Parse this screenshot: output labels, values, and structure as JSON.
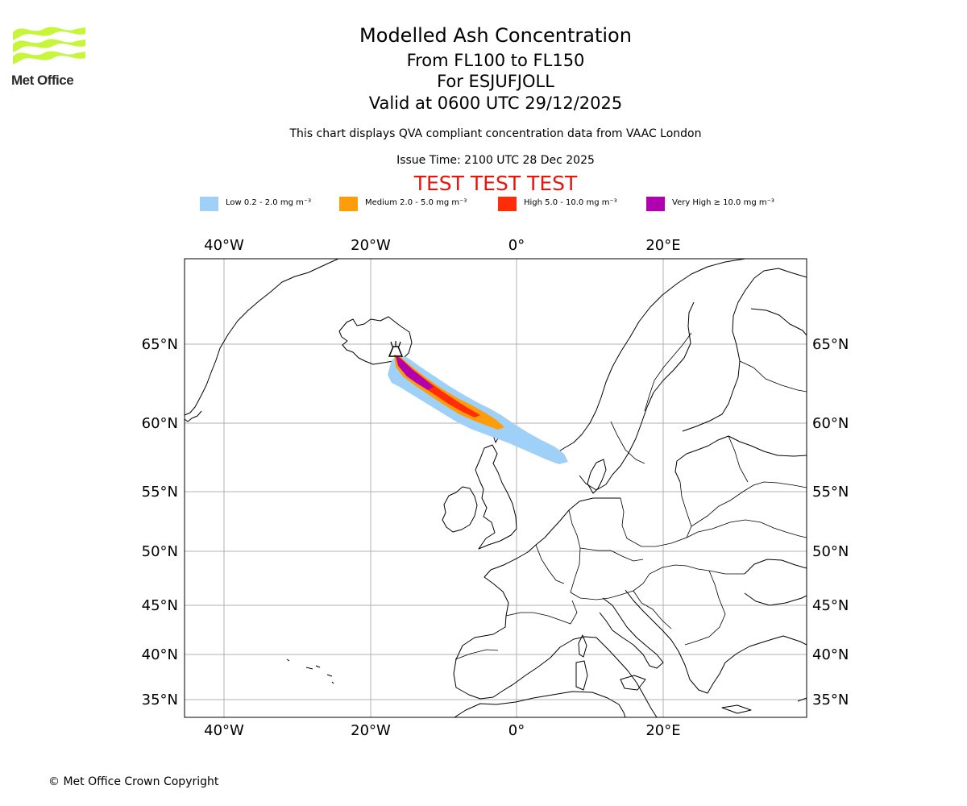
{
  "header": {
    "logo_text": "Met Office",
    "title_line1": "Modelled Ash Concentration",
    "title_line2": "From FL100 to FL150",
    "title_line3": "For ESJUFJOLL",
    "title_line4": "Valid at 0600 UTC 29/12/2025",
    "subtitle": "This chart displays QVA compliant concentration data from VAAC London",
    "issue_time": "Issue Time: 2100 UTC 28 Dec 2025",
    "test_banner": "TEST TEST TEST"
  },
  "legend": [
    {
      "label": "Low 0.2 - 2.0 mg m⁻³",
      "color": "#9fd0f7"
    },
    {
      "label": "Medium 2.0 - 5.0 mg m⁻³",
      "color": "#ff9c0a"
    },
    {
      "label": "High 5.0 - 10.0 mg m⁻³",
      "color": "#ff2d0a"
    },
    {
      "label": "Very High ≥ 10.0 mg m⁻³",
      "color": "#b000b0"
    }
  ],
  "map": {
    "longitude_labels": [
      "40°W",
      "20°W",
      "0°",
      "20°E"
    ],
    "latitude_labels": [
      "65°N",
      "60°N",
      "55°N",
      "50°N",
      "45°N",
      "40°N",
      "35°N"
    ],
    "volcano_icon": "volcano-icon",
    "grid": true
  },
  "footer": {
    "copyright": "© Met Office Crown Copyright"
  }
}
